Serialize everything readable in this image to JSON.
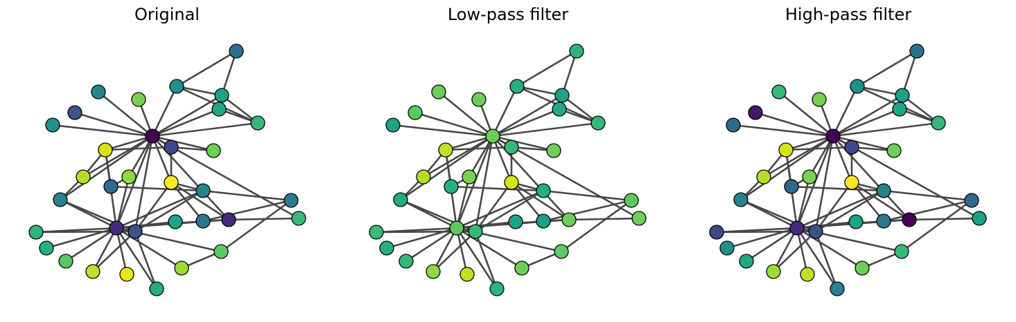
{
  "figure": {
    "panels": [
      {
        "title": "Original",
        "node_colors": [
          "#440154",
          "#482979",
          "#3b528b",
          "#3e4a89",
          "#2c728e",
          "#21908d",
          "#1f9e89",
          "#22a884",
          "#35b779",
          "#6ece58",
          "#8fd744",
          "#b5de2b",
          "#d8e219",
          "#fde725",
          "#25838e",
          "#2a788e",
          "#31688e",
          "#26828e",
          "#1fa088",
          "#482979",
          "#277f8e",
          "#3aba76",
          "#5ec962",
          "#a0da39",
          "#c2df23",
          "#eae51a",
          "#3b528b",
          "#23888e",
          "#7ad151",
          "#58c765",
          "#29af7f",
          "#26ad81",
          "#2fb47c",
          "#21918c"
        ]
      },
      {
        "title": "Low-pass filter",
        "node_colors": [
          "#6ece58",
          "#5ec962",
          "#35b779",
          "#35b779",
          "#2fb47c",
          "#26ad81",
          "#1fa088",
          "#22a884",
          "#35b779",
          "#6ece58",
          "#7ad151",
          "#b5de2b",
          "#c2df23",
          "#d8e219",
          "#26ad81",
          "#1f9e89",
          "#29af7f",
          "#25ab82",
          "#1fa088",
          "#6ece58",
          "#5ec962",
          "#6ece58",
          "#5ec962",
          "#6ece58",
          "#8fd744",
          "#c2df23",
          "#5ec962",
          "#6ece58",
          "#6ece58",
          "#35b779",
          "#29af7f",
          "#2fb47c",
          "#3aba76",
          "#1fa088"
        ]
      },
      {
        "title": "High-pass filter",
        "node_colors": [
          "#440154",
          "#482979",
          "#3b528b",
          "#3e4a89",
          "#2c728e",
          "#21908d",
          "#1f9e89",
          "#22a884",
          "#35b779",
          "#6ece58",
          "#7ad151",
          "#b5de2b",
          "#d8e219",
          "#fde725",
          "#26828e",
          "#2a788e",
          "#31688e",
          "#26828e",
          "#1fa088",
          "#440154",
          "#31688e",
          "#1f9e89",
          "#3aba76",
          "#6ece58",
          "#a0da39",
          "#c2df23",
          "#481668",
          "#3aba76",
          "#7ad151",
          "#22a884",
          "#21908d",
          "#26828e",
          "#3e4a89",
          "#31688e"
        ]
      }
    ]
  }
}
